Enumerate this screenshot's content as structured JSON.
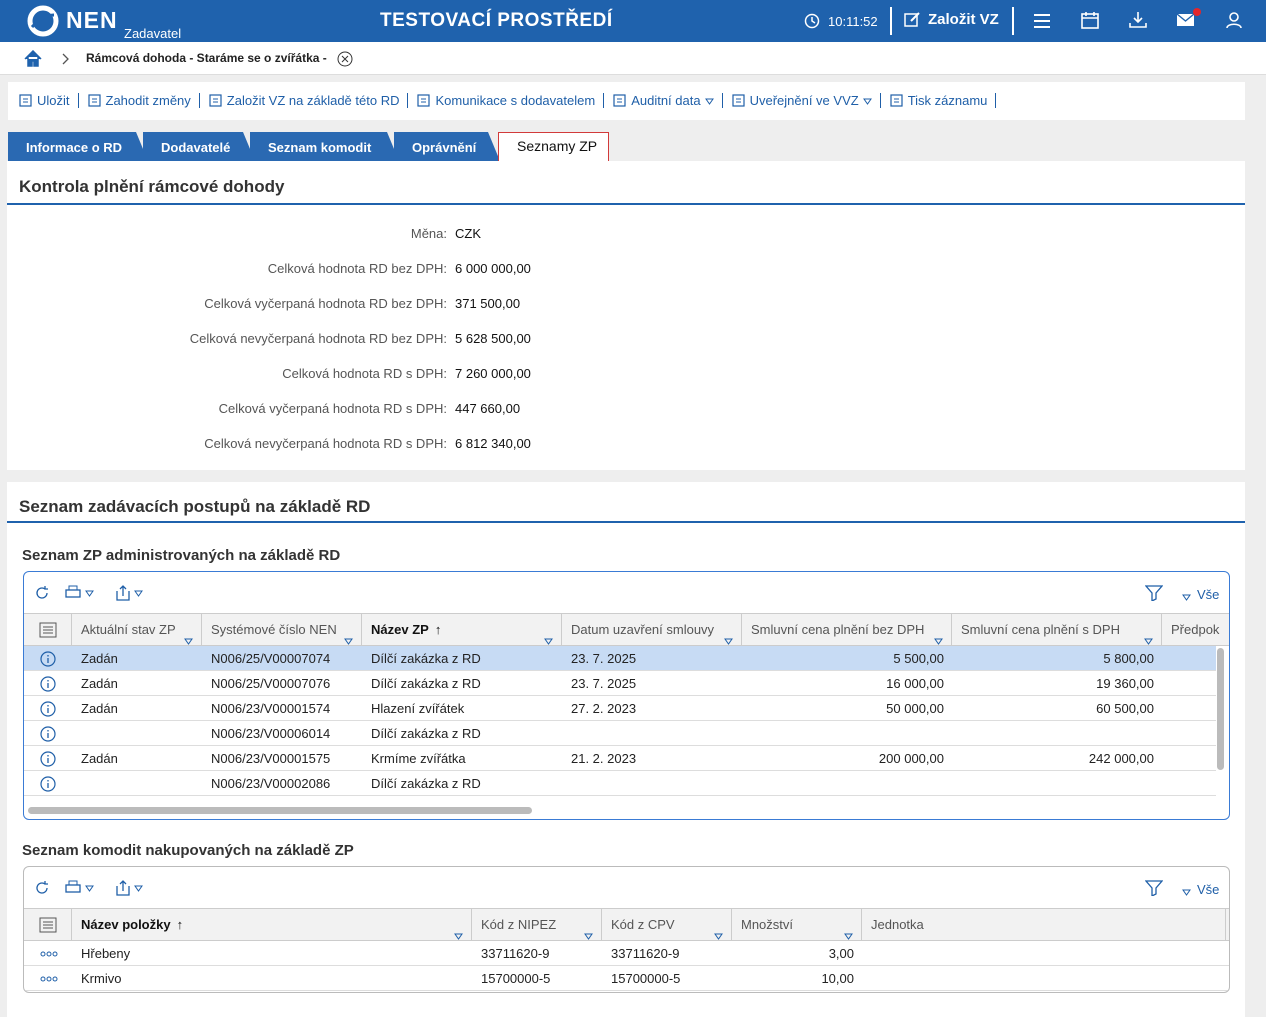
{
  "header": {
    "logo": "NEN",
    "role": "Zadavatel",
    "environment": "TESTOVACÍ PROSTŘEDÍ",
    "time": "10:11:52",
    "create_button": "Založit VZ"
  },
  "breadcrumb": {
    "current": "Rámcová dohoda - Staráme se o zvířátka -"
  },
  "toolbar": [
    "Uložit",
    "Zahodit změny",
    "Založit VZ na základě této RD",
    "Komunikace s dodavatelem",
    "Auditní data",
    "Uveřejnění ve VVZ",
    "Tisk záznamu"
  ],
  "tabs": [
    {
      "label": "Informace o RD",
      "active": false
    },
    {
      "label": "Dodavatelé",
      "active": false
    },
    {
      "label": "Seznam komodit",
      "active": false
    },
    {
      "label": "Oprávnění",
      "active": false
    },
    {
      "label": "Seznamy ZP",
      "active": true
    }
  ],
  "control": {
    "title": "Kontrola plnění rámcové dohody",
    "fields": [
      {
        "label": "Měna:",
        "value": "CZK"
      },
      {
        "label": "Celková hodnota RD bez DPH:",
        "value": "6 000 000,00"
      },
      {
        "label": "Celková vyčerpaná hodnota RD bez DPH:",
        "value": "371 500,00"
      },
      {
        "label": "Celková nevyčerpaná hodnota RD bez DPH:",
        "value": "5 628 500,00"
      },
      {
        "label": "Celková hodnota RD s DPH:",
        "value": "7 260 000,00"
      },
      {
        "label": "Celková vyčerpaná hodnota RD s DPH:",
        "value": "447 660,00"
      },
      {
        "label": "Celková nevyčerpaná hodnota RD s DPH:",
        "value": "6 812 340,00"
      }
    ]
  },
  "procedures": {
    "title": "Seznam zadávacích postupů na základě RD",
    "admin_list": {
      "title": "Seznam ZP administrovaných na základě RD",
      "filter": "Vše",
      "columns": [
        "Aktuální stav ZP",
        "Systémové číslo NEN",
        "Název ZP",
        "Datum uzavření smlouvy",
        "Smluvní cena plnění bez DPH",
        "Smluvní cena plnění s DPH",
        "Předpok"
      ],
      "rows": [
        [
          "Zadán",
          "N006/25/V00007074",
          "Dílčí zakázka z RD",
          "23. 7. 2025",
          "5 500,00",
          "5 800,00"
        ],
        [
          "Zadán",
          "N006/25/V00007076",
          "Dílčí zakázka z RD",
          "23. 7. 2025",
          "16 000,00",
          "19 360,00"
        ],
        [
          "Zadán",
          "N006/23/V00001574",
          "Hlazení zvířátek",
          "27. 2. 2023",
          "50 000,00",
          "60 500,00"
        ],
        [
          null,
          "N006/23/V00006014",
          "Dílčí zakázka z RD",
          null,
          null,
          null
        ],
        [
          "Zadán",
          "N006/23/V00001575",
          "Krmíme zvířátka",
          "21. 2. 2023",
          "200 000,00",
          "242 000,00"
        ],
        [
          null,
          "N006/23/V00002086",
          "Dílčí zakázka z RD",
          null,
          null,
          null
        ]
      ]
    },
    "commodity_list": {
      "title": "Seznam komodit nakupovaných na základě ZP",
      "filter": "Vše",
      "columns": [
        "Název položky",
        "Kód z NIPEZ",
        "Kód z CPV",
        "Množství",
        "Jednotka"
      ],
      "rows": [
        [
          "Hřebeny",
          "33711620-9",
          "33711620-9",
          "3,00"
        ],
        [
          "Krmivo",
          "15700000-5",
          "15700000-5",
          "10,00"
        ]
      ]
    }
  }
}
